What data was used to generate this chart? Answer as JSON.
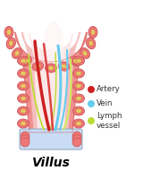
{
  "bg_color": "#ffffff",
  "outer_color": "#f09090",
  "mid_color": "#f5bfbf",
  "inner_color": "#fce8e8",
  "core_light": "#fdf4f4",
  "cell_body_color": "#ee7777",
  "cell_nucleus_color": "#e8c860",
  "cell_border_color": "#cc5555",
  "artery_color": "#cc2020",
  "artery_color2": "#dd4444",
  "vein_color": "#66ccee",
  "lymph_color": "#bbdd33",
  "lymph_color2": "#ccee55",
  "title": "Villus",
  "title_fontsize": 10,
  "legend_artery": "Artery",
  "legend_vein": "Vein",
  "legend_lymph": "Lymph\nvessel",
  "bottom_strip_color": "#c8ddf5",
  "bottom_strip_border": "#99aac0"
}
